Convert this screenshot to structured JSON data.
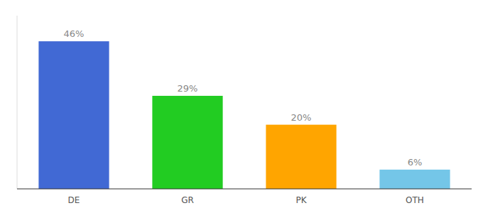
{
  "chart_data": {
    "type": "bar",
    "categories": [
      "DE",
      "GR",
      "PK",
      "OTH"
    ],
    "values": [
      46,
      29,
      20,
      6
    ],
    "value_labels": [
      "46%",
      "29%",
      "20%",
      "6%"
    ],
    "colors": [
      "#4169D4",
      "#22CC22",
      "#FFA500",
      "#74C6E8"
    ],
    "ylim": [
      0,
      54
    ],
    "data_labels": true,
    "tick_labels": "x"
  }
}
